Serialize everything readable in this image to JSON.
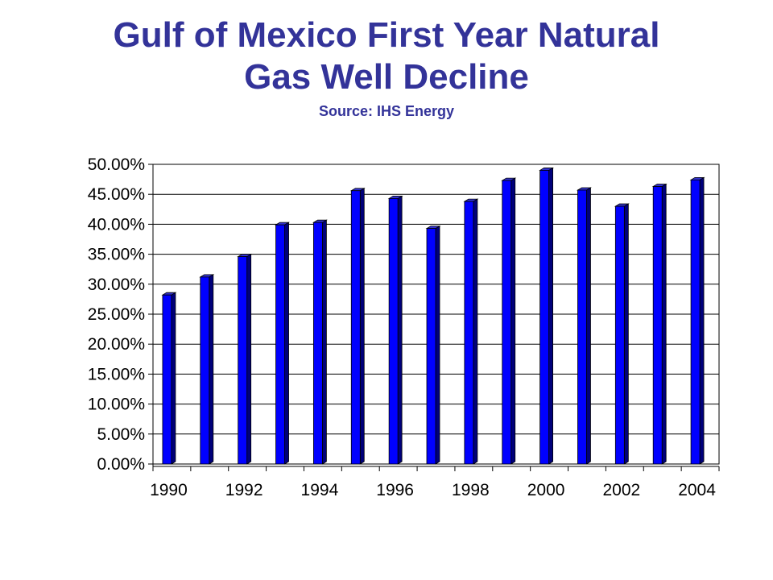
{
  "colors": {
    "title": "#333399",
    "bar_front": "#0000ff",
    "bar_side": "#00007a",
    "bar_top": "#3333cc",
    "grid": "#000000"
  },
  "chart_data": {
    "type": "bar",
    "title_lines": [
      "Gulf of Mexico First Year Natural",
      "Gas Well Decline"
    ],
    "subtitle": "Source: IHS Energy",
    "xlabel": "",
    "ylabel": "",
    "categories": [
      "1990",
      "1991",
      "1992",
      "1993",
      "1994",
      "1995",
      "1996",
      "1997",
      "1998",
      "1999",
      "2000",
      "2001",
      "2002",
      "2003",
      "2004"
    ],
    "x_tick_labels": [
      "1990",
      "1992",
      "1994",
      "1996",
      "1998",
      "2000",
      "2002",
      "2004"
    ],
    "values": [
      28.2,
      31.2,
      34.6,
      39.9,
      40.3,
      45.6,
      44.3,
      39.3,
      43.8,
      47.3,
      49.0,
      45.7,
      43.0,
      46.3,
      47.4
    ],
    "ylim": [
      0,
      50
    ],
    "y_tick_labels": [
      "0.00%",
      "5.00%",
      "10.00%",
      "15.00%",
      "20.00%",
      "25.00%",
      "30.00%",
      "35.00%",
      "40.00%",
      "45.00%",
      "50.00%"
    ],
    "grid": true,
    "legend": "none"
  }
}
